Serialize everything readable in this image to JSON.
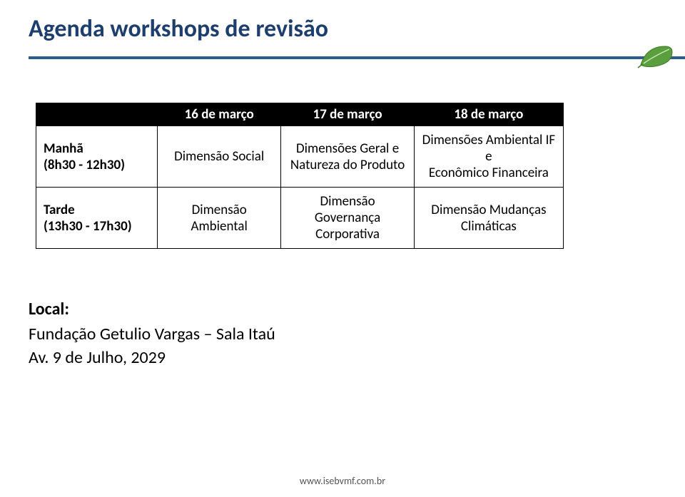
{
  "title": "Agenda workshops de revisão",
  "colors": {
    "title": "#1e3f6e",
    "rule": "#2e5c8a",
    "table_header_bg": "#000000",
    "table_header_fg": "#ffffff",
    "table_border": "#000000",
    "background": "#ffffff",
    "leaf_fill": "#5a9e3e",
    "leaf_vein": "#c9e8b5"
  },
  "table": {
    "columns": [
      "16 de março",
      "17 de março",
      "18 de março"
    ],
    "rows": [
      {
        "header": "Manhã\n(8h30 - 12h30)",
        "cells": [
          "Dimensão Social",
          "Dimensões Geral e\nNatureza do Produto",
          "Dimensões Ambiental IF e\nEconômico Financeira"
        ]
      },
      {
        "header": "Tarde\n(13h30 - 17h30)",
        "cells": [
          "Dimensão Ambiental",
          "Dimensão Governança\nCorporativa",
          "Dimensão Mudanças\nClimáticas"
        ]
      }
    ]
  },
  "location": {
    "label": "Local:",
    "line1": "Fundação Getulio Vargas – Sala Itaú",
    "line2": "Av. 9 de Julho, 2029"
  },
  "footer": "www.isebvmf.com.br"
}
